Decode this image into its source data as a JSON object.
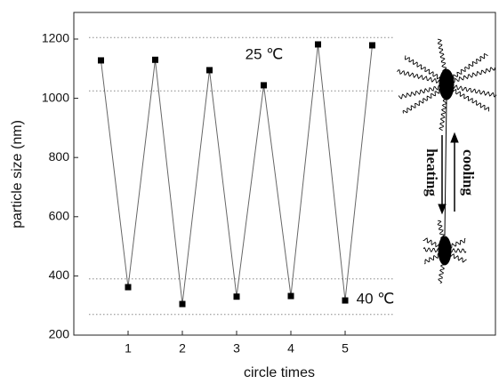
{
  "chart_data": {
    "type": "line",
    "x": [
      0.5,
      1,
      1.5,
      2,
      2.5,
      3,
      3.5,
      4,
      4.5,
      5,
      5.5
    ],
    "values": [
      1128,
      362,
      1130,
      305,
      1095,
      330,
      1044,
      332,
      1182,
      317,
      1179
    ],
    "color": "#000000",
    "xlim": [
      0,
      7.77
    ],
    "ylim": [
      200,
      1290
    ],
    "xticks": [
      1,
      2,
      3,
      4,
      5
    ],
    "yticks": [
      200,
      400,
      600,
      800,
      1000,
      1200
    ],
    "xlabel": "circle times",
    "ylabel": "particle size (nm)",
    "reference_lines": [
      1205,
      1025,
      390,
      270
    ],
    "annotations": [
      "25 ℃",
      "40 ℃"
    ],
    "diagram": {
      "down_label": "heating",
      "up_label": "cooling"
    }
  }
}
